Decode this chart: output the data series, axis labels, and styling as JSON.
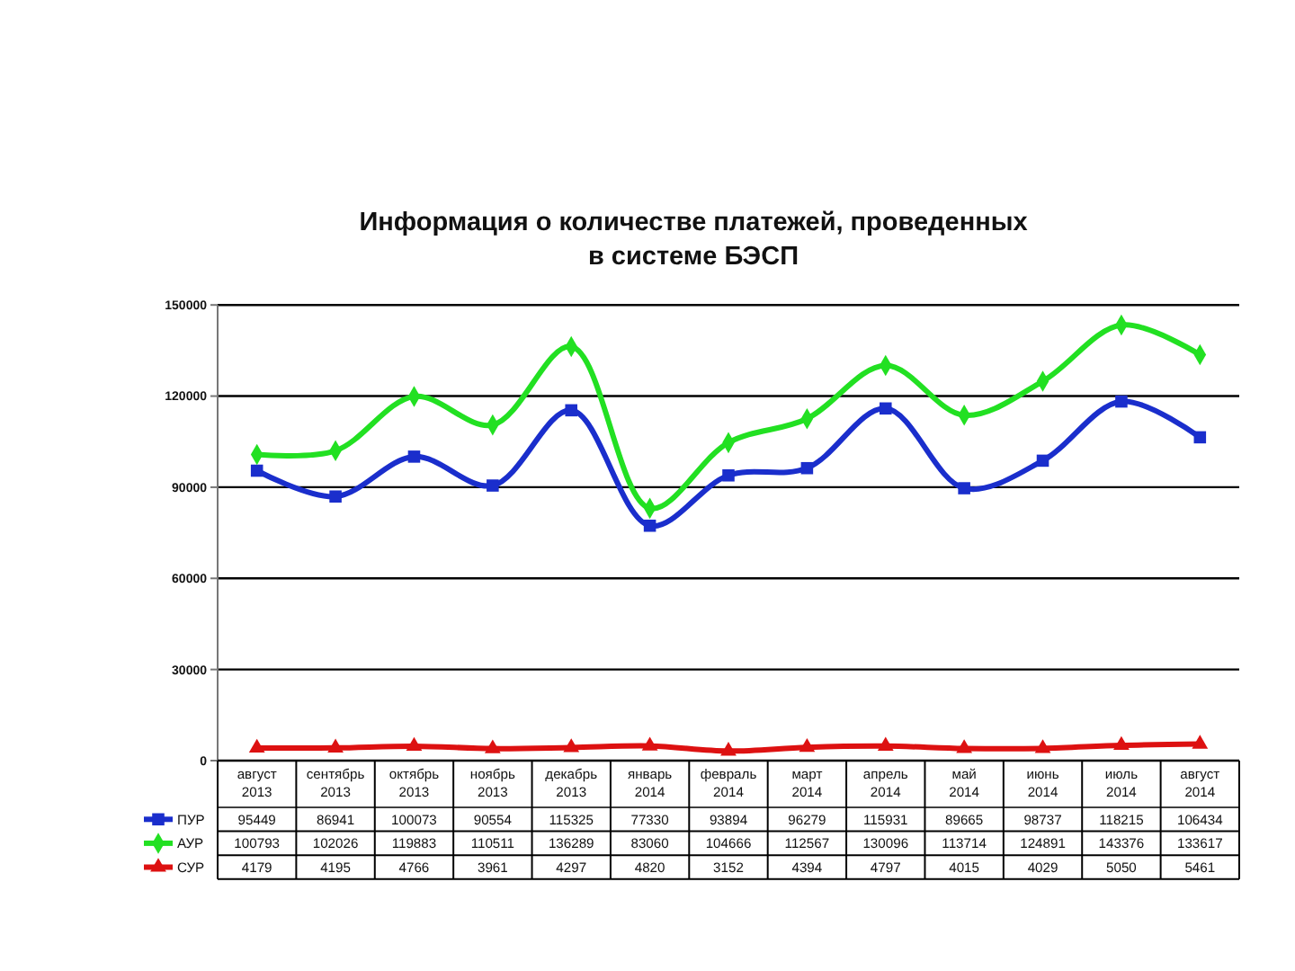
{
  "chart_data": {
    "type": "line",
    "title": "Информация о количестве платежей, проведенных\nв системе БЭСП",
    "categories": [
      "август 2013",
      "сентябрь 2013",
      "октябрь 2013",
      "ноябрь 2013",
      "декабрь 2013",
      "январь 2014",
      "февраль 2014",
      "март 2014",
      "апрель 2014",
      "май 2014",
      "июнь 2014",
      "июль 2014",
      "август 2014"
    ],
    "series": [
      {
        "name": "ПУР",
        "color": "#1a2ecc",
        "marker": "square",
        "values": [
          95449,
          86941,
          100073,
          90554,
          115325,
          77330,
          93894,
          96279,
          115931,
          89665,
          98737,
          118215,
          106434
        ]
      },
      {
        "name": "АУР",
        "color": "#22e022",
        "marker": "diamond",
        "values": [
          100793,
          102026,
          119883,
          110511,
          136289,
          83060,
          104666,
          112567,
          130096,
          113714,
          124891,
          143376,
          133617
        ]
      },
      {
        "name": "СУР",
        "color": "#dd1111",
        "marker": "triangle",
        "values": [
          4179,
          4195,
          4766,
          3961,
          4297,
          4820,
          3152,
          4394,
          4797,
          4015,
          4029,
          5050,
          5461
        ]
      }
    ],
    "ylim": [
      0,
      150000
    ],
    "yticks": [
      0,
      30000,
      60000,
      90000,
      120000,
      150000
    ],
    "grid": "y",
    "legend": "bottom left",
    "data_labels": true
  }
}
